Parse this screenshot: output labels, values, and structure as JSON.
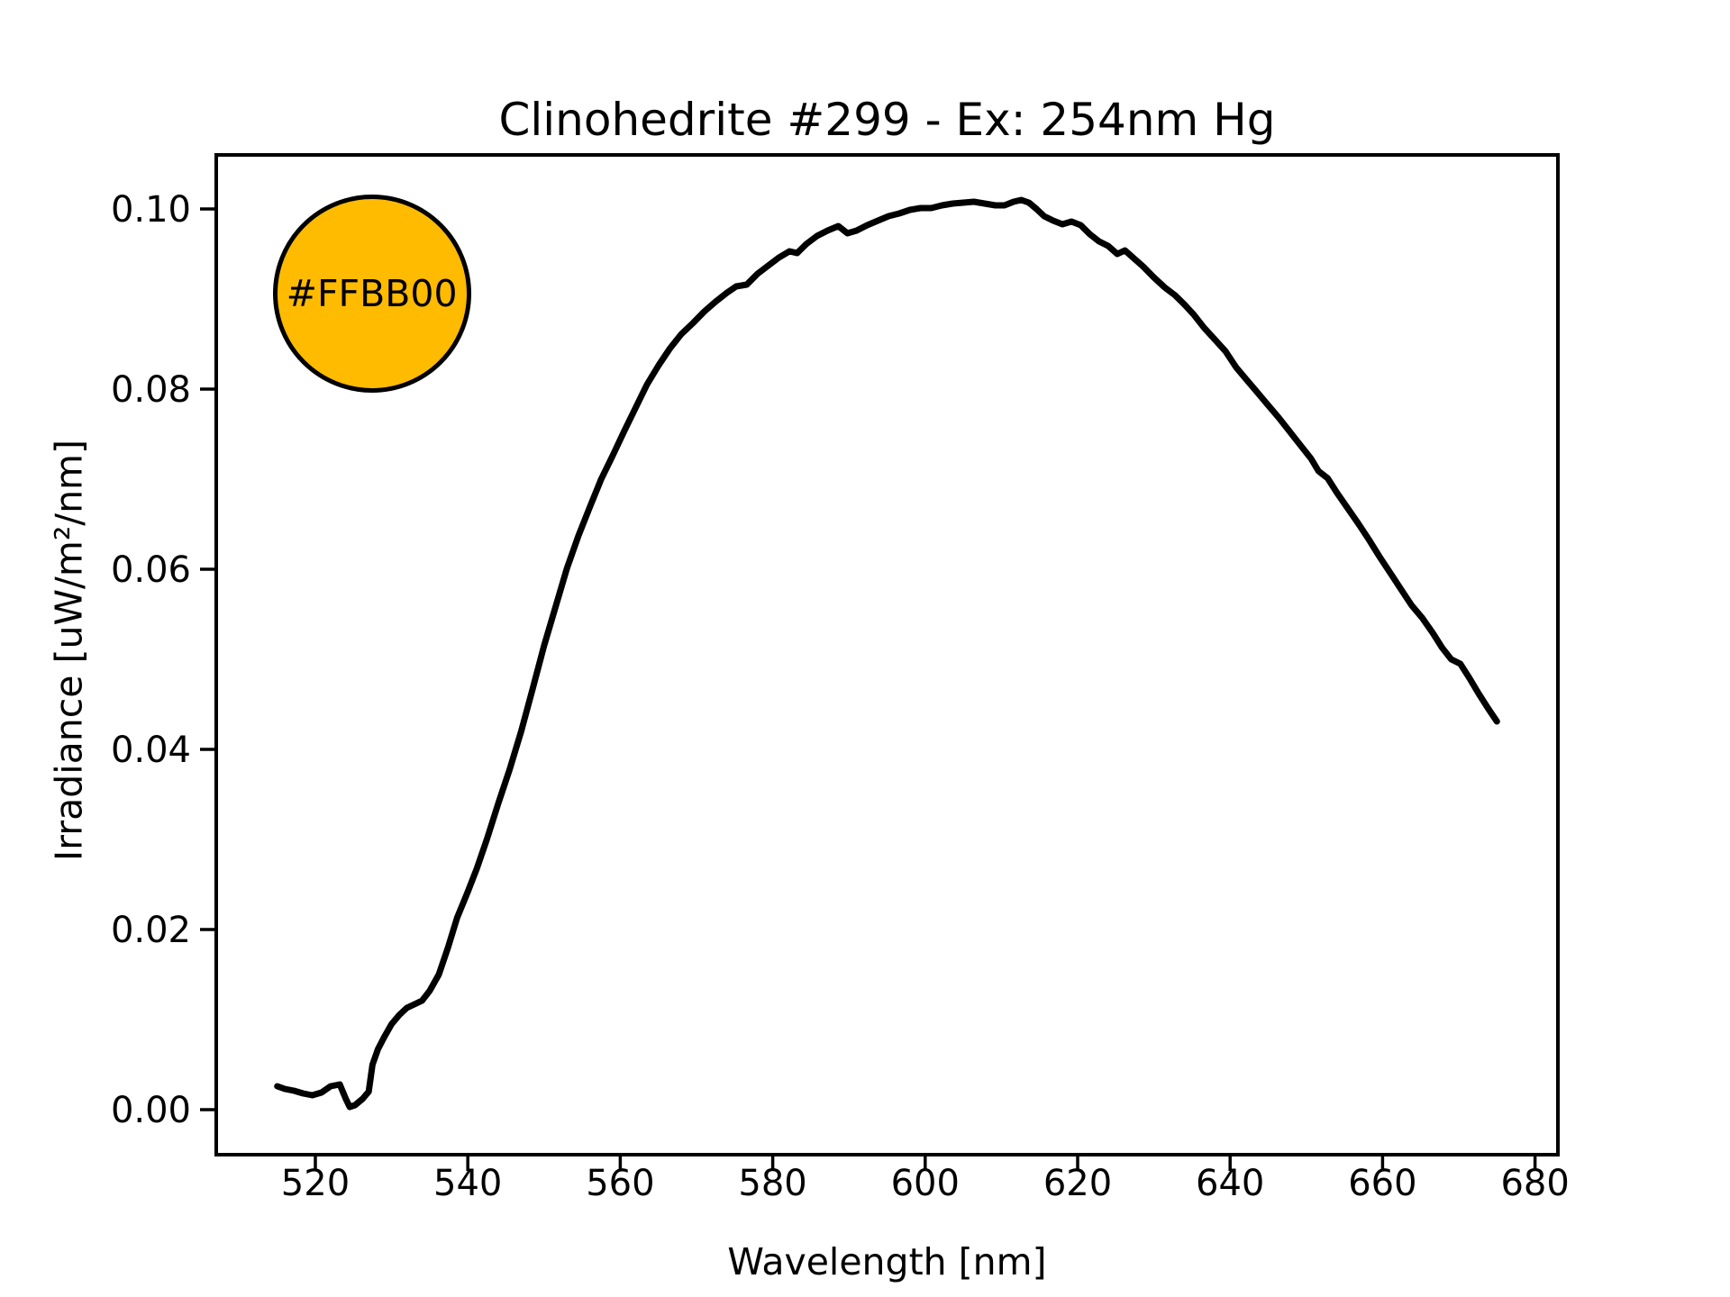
{
  "chart_data": {
    "type": "line",
    "title": "Clinohedrite #299 - Ex: 254nm Hg",
    "xlabel": "Wavelength [nm]",
    "ylabel": "Irradiance [uW/m²/nm]",
    "xlim": [
      507,
      683
    ],
    "ylim": [
      -0.005,
      0.106
    ],
    "grid": false,
    "legend_position": "none",
    "line_color": "#000000",
    "background_color": "#ffffff",
    "xticks": {
      "values": [
        520,
        540,
        560,
        580,
        600,
        620,
        640,
        660,
        680
      ],
      "labels": [
        "520",
        "540",
        "560",
        "580",
        "600",
        "620",
        "640",
        "660",
        "680"
      ]
    },
    "yticks": {
      "values": [
        0.0,
        0.02,
        0.04,
        0.06,
        0.08,
        0.1
      ],
      "labels": [
        "0.00",
        "0.02",
        "0.04",
        "0.06",
        "0.08",
        "0.10"
      ]
    },
    "annotation": {
      "label": "#FFBB00",
      "fill": "#FFBB00",
      "text_color": "#000000",
      "x": 527.4,
      "y": 0.0906
    },
    "series": [
      {
        "name": "emission-spectrum",
        "color": "#000000",
        "points": [
          [
            515.0,
            0.0026
          ],
          [
            516.0,
            0.0023
          ],
          [
            517.2,
            0.0021
          ],
          [
            518.4,
            0.0018
          ],
          [
            519.6,
            0.0016
          ],
          [
            520.8,
            0.0019
          ],
          [
            522.0,
            0.0026
          ],
          [
            523.2,
            0.0028
          ],
          [
            524.0,
            0.0012
          ],
          [
            524.5,
            0.0003
          ],
          [
            525.2,
            0.0005
          ],
          [
            526.2,
            0.0012
          ],
          [
            527.0,
            0.002
          ],
          [
            527.5,
            0.005
          ],
          [
            528.2,
            0.0067
          ],
          [
            529.0,
            0.008
          ],
          [
            530.0,
            0.0095
          ],
          [
            531.0,
            0.0105
          ],
          [
            532.0,
            0.0113
          ],
          [
            533.0,
            0.0117
          ],
          [
            534.0,
            0.0121
          ],
          [
            535.0,
            0.0132
          ],
          [
            536.2,
            0.015
          ],
          [
            537.4,
            0.018
          ],
          [
            538.6,
            0.0213
          ],
          [
            540.0,
            0.0242
          ],
          [
            541.2,
            0.0268
          ],
          [
            542.5,
            0.03
          ],
          [
            544.0,
            0.034
          ],
          [
            545.5,
            0.0378
          ],
          [
            547.0,
            0.042
          ],
          [
            548.5,
            0.0467
          ],
          [
            550.0,
            0.0515
          ],
          [
            551.5,
            0.0558
          ],
          [
            553.0,
            0.0601
          ],
          [
            554.5,
            0.0637
          ],
          [
            556.0,
            0.0669
          ],
          [
            557.5,
            0.07
          ],
          [
            559.0,
            0.0726
          ],
          [
            560.5,
            0.0753
          ],
          [
            562.0,
            0.0779
          ],
          [
            563.5,
            0.0805
          ],
          [
            565.0,
            0.0826
          ],
          [
            566.5,
            0.0845
          ],
          [
            568.0,
            0.0861
          ],
          [
            569.5,
            0.0873
          ],
          [
            571.0,
            0.0886
          ],
          [
            572.5,
            0.0897
          ],
          [
            574.0,
            0.0907
          ],
          [
            575.2,
            0.0914
          ],
          [
            576.6,
            0.0916
          ],
          [
            578.0,
            0.0928
          ],
          [
            579.4,
            0.0937
          ],
          [
            580.8,
            0.0946
          ],
          [
            582.2,
            0.0953
          ],
          [
            583.2,
            0.0951
          ],
          [
            584.4,
            0.0961
          ],
          [
            585.8,
            0.097
          ],
          [
            587.2,
            0.0976
          ],
          [
            588.6,
            0.0981
          ],
          [
            589.8,
            0.0973
          ],
          [
            591.0,
            0.0976
          ],
          [
            592.4,
            0.0982
          ],
          [
            593.8,
            0.0987
          ],
          [
            595.2,
            0.0992
          ],
          [
            596.6,
            0.0995
          ],
          [
            598.0,
            0.0999
          ],
          [
            599.4,
            0.1001
          ],
          [
            600.8,
            0.1001
          ],
          [
            602.2,
            0.1004
          ],
          [
            603.6,
            0.1006
          ],
          [
            605.0,
            0.1007
          ],
          [
            606.4,
            0.1008
          ],
          [
            607.8,
            0.1006
          ],
          [
            609.2,
            0.1004
          ],
          [
            610.4,
            0.1004
          ],
          [
            611.6,
            0.1008
          ],
          [
            612.6,
            0.101
          ],
          [
            613.6,
            0.1007
          ],
          [
            614.6,
            0.1
          ],
          [
            615.6,
            0.0992
          ],
          [
            616.8,
            0.0987
          ],
          [
            618.0,
            0.0983
          ],
          [
            619.2,
            0.0986
          ],
          [
            620.4,
            0.0982
          ],
          [
            621.6,
            0.0972
          ],
          [
            622.8,
            0.0964
          ],
          [
            624.0,
            0.0959
          ],
          [
            625.2,
            0.095
          ],
          [
            626.2,
            0.0954
          ],
          [
            627.4,
            0.0945
          ],
          [
            628.6,
            0.0936
          ],
          [
            630.0,
            0.0924
          ],
          [
            631.4,
            0.0913
          ],
          [
            632.8,
            0.0904
          ],
          [
            634.0,
            0.0894
          ],
          [
            635.2,
            0.0883
          ],
          [
            636.6,
            0.0868
          ],
          [
            638.0,
            0.0855
          ],
          [
            639.4,
            0.0842
          ],
          [
            640.8,
            0.0824
          ],
          [
            642.2,
            0.081
          ],
          [
            643.6,
            0.0796
          ],
          [
            645.0,
            0.0782
          ],
          [
            646.4,
            0.0768
          ],
          [
            647.8,
            0.0753
          ],
          [
            649.2,
            0.0738
          ],
          [
            650.6,
            0.0723
          ],
          [
            651.6,
            0.0709
          ],
          [
            652.8,
            0.0701
          ],
          [
            654.0,
            0.0685
          ],
          [
            655.4,
            0.0668
          ],
          [
            656.8,
            0.0651
          ],
          [
            658.2,
            0.0633
          ],
          [
            659.6,
            0.0614
          ],
          [
            661.0,
            0.0596
          ],
          [
            662.4,
            0.0578
          ],
          [
            663.8,
            0.056
          ],
          [
            665.2,
            0.0546
          ],
          [
            666.6,
            0.0529
          ],
          [
            667.8,
            0.0513
          ],
          [
            669.0,
            0.05
          ],
          [
            670.2,
            0.0495
          ],
          [
            671.4,
            0.0479
          ],
          [
            672.6,
            0.0462
          ],
          [
            673.8,
            0.0446
          ],
          [
            675.0,
            0.0431
          ]
        ]
      }
    ]
  }
}
